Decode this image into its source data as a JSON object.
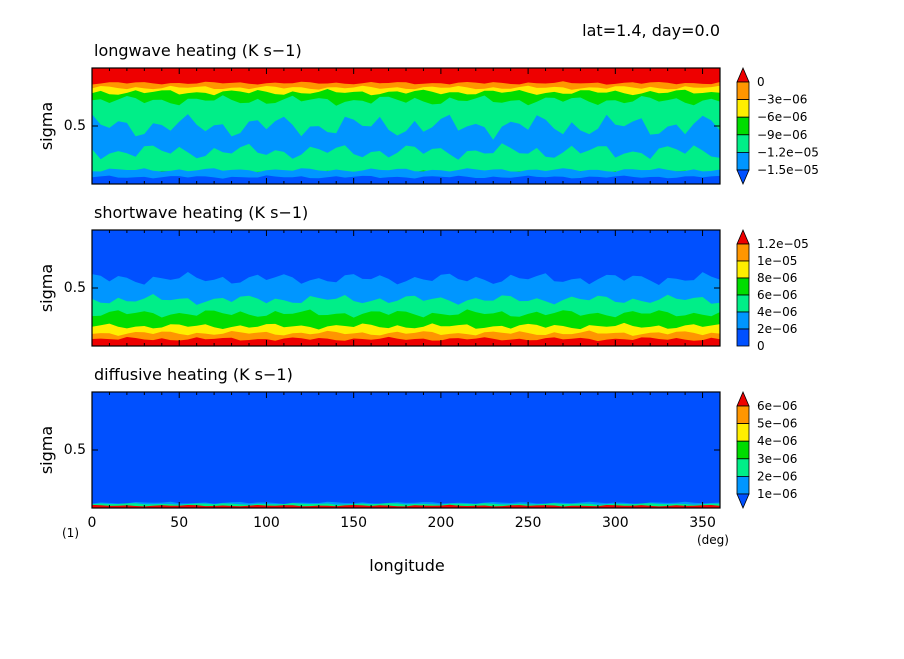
{
  "header": {
    "text": "lat=1.4, day=0.0"
  },
  "figure_note": "(1)",
  "chart_data": [
    {
      "type": "heatmap",
      "title": "longwave heating (K s−1)",
      "ylabel": "sigma",
      "yticks": [
        "0.5"
      ],
      "xlim": [
        0,
        360
      ],
      "ylim": [
        1,
        0
      ],
      "colorbar": {
        "labels": [
          "0",
          "−3e−06",
          "−6e−06",
          "−9e−06",
          "−1.2e−05",
          "−1.5e−05"
        ],
        "colors": [
          "#ee0000",
          "#ff9600",
          "#ffee00",
          "#00dd00",
          "#00ee88",
          "#0096ff",
          "#0050ff"
        ],
        "extend": "both"
      }
    },
    {
      "type": "heatmap",
      "title": "shortwave heating (K s−1)",
      "ylabel": "sigma",
      "yticks": [
        "0.5"
      ],
      "xlim": [
        0,
        360
      ],
      "ylim": [
        1,
        0
      ],
      "colorbar": {
        "labels": [
          "1.2e−05",
          "1e−05",
          "8e−06",
          "6e−06",
          "4e−06",
          "2e−06",
          "0"
        ],
        "colors": [
          "#ee0000",
          "#ff9600",
          "#ffee00",
          "#00dd00",
          "#00ee88",
          "#0096ff",
          "#0050ff"
        ],
        "extend": "max"
      }
    },
    {
      "type": "heatmap",
      "title": "diffusive heating (K s−1)",
      "ylabel": "sigma",
      "yticks": [
        "0.5"
      ],
      "xlim": [
        0,
        360
      ],
      "ylim": [
        1,
        0
      ],
      "xlabel": "longitude",
      "xunit": "(deg)",
      "xticks": [
        "0",
        "50",
        "100",
        "150",
        "200",
        "250",
        "300",
        "350"
      ],
      "colorbar": {
        "labels": [
          "6e−06",
          "5e−06",
          "4e−06",
          "3e−06",
          "2e−06",
          "1e−06"
        ],
        "colors": [
          "#ee0000",
          "#ff9600",
          "#ffee00",
          "#00dd00",
          "#00ee88",
          "#0096ff",
          "#0050ff"
        ],
        "extend": "both"
      }
    }
  ]
}
